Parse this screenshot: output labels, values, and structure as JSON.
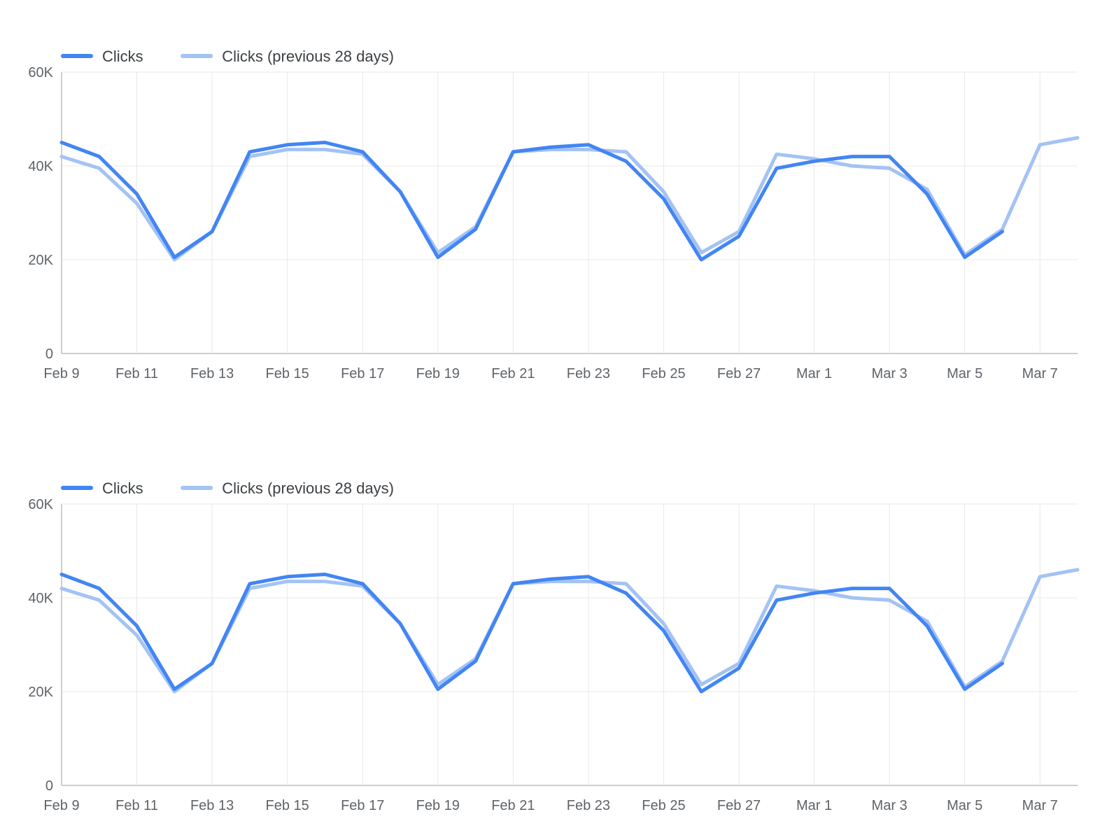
{
  "page": {
    "background_color": "#ffffff",
    "grid_color": "#e8e8e8",
    "axis_color": "#bdbdbd",
    "tick_label_color": "#5f6368",
    "legend_text_color": "#3c4043"
  },
  "chart_data": [
    {
      "type": "line",
      "title": "",
      "legend_position": "top-left",
      "grid": true,
      "ylim": [
        0,
        60000
      ],
      "ytick_values": [
        0,
        20000,
        40000,
        60000
      ],
      "ytick_labels": [
        "0",
        "20K",
        "40K",
        "60K"
      ],
      "x": [
        "Feb 9",
        "Feb 10",
        "Feb 11",
        "Feb 12",
        "Feb 13",
        "Feb 14",
        "Feb 15",
        "Feb 16",
        "Feb 17",
        "Feb 18",
        "Feb 19",
        "Feb 20",
        "Feb 21",
        "Feb 22",
        "Feb 23",
        "Feb 24",
        "Feb 25",
        "Feb 26",
        "Feb 27",
        "Feb 28",
        "Mar 1",
        "Mar 2",
        "Mar 3",
        "Mar 4",
        "Mar 5",
        "Mar 6",
        "Mar 7",
        "Mar 8"
      ],
      "xtick_every": 2,
      "series": [
        {
          "name": "Clicks",
          "color": "#4285f4",
          "values": [
            45000,
            42000,
            34000,
            20500,
            26000,
            43000,
            44500,
            45000,
            43000,
            34500,
            20500,
            26500,
            43000,
            44000,
            44500,
            41000,
            33000,
            20000,
            25000,
            39500,
            41000,
            42000,
            42000,
            34000,
            20500,
            26000,
            null,
            null
          ]
        },
        {
          "name": "Clicks (previous 28 days)",
          "color": "#a4c2f4",
          "values": [
            42000,
            39500,
            32000,
            20000,
            26000,
            42000,
            43500,
            43500,
            42500,
            34500,
            21500,
            27000,
            43000,
            43500,
            43500,
            43000,
            34500,
            21500,
            26000,
            42500,
            41500,
            40000,
            39500,
            35000,
            21000,
            26500,
            44500,
            46000
          ]
        }
      ]
    },
    {
      "type": "line",
      "title": "",
      "legend_position": "top-left",
      "grid": true,
      "ylim": [
        0,
        60000
      ],
      "ytick_values": [
        0,
        20000,
        40000,
        60000
      ],
      "ytick_labels": [
        "0",
        "20K",
        "40K",
        "60K"
      ],
      "x": [
        "Feb 9",
        "Feb 10",
        "Feb 11",
        "Feb 12",
        "Feb 13",
        "Feb 14",
        "Feb 15",
        "Feb 16",
        "Feb 17",
        "Feb 18",
        "Feb 19",
        "Feb 20",
        "Feb 21",
        "Feb 22",
        "Feb 23",
        "Feb 24",
        "Feb 25",
        "Feb 26",
        "Feb 27",
        "Feb 28",
        "Mar 1",
        "Mar 2",
        "Mar 3",
        "Mar 4",
        "Mar 5",
        "Mar 6",
        "Mar 7",
        "Mar 8"
      ],
      "xtick_every": 2,
      "series": [
        {
          "name": "Clicks",
          "color": "#4285f4",
          "values": [
            45000,
            42000,
            34000,
            20500,
            26000,
            43000,
            44500,
            45000,
            43000,
            34500,
            20500,
            26500,
            43000,
            44000,
            44500,
            41000,
            33000,
            20000,
            25000,
            39500,
            41000,
            42000,
            42000,
            34000,
            20500,
            26000,
            null,
            null
          ]
        },
        {
          "name": "Clicks (previous 28 days)",
          "color": "#a4c2f4",
          "values": [
            42000,
            39500,
            32000,
            20000,
            26000,
            42000,
            43500,
            43500,
            42500,
            34500,
            21500,
            27000,
            43000,
            43500,
            43500,
            43000,
            34500,
            21500,
            26000,
            42500,
            41500,
            40000,
            39500,
            35000,
            21000,
            26500,
            44500,
            46000
          ]
        }
      ]
    }
  ]
}
